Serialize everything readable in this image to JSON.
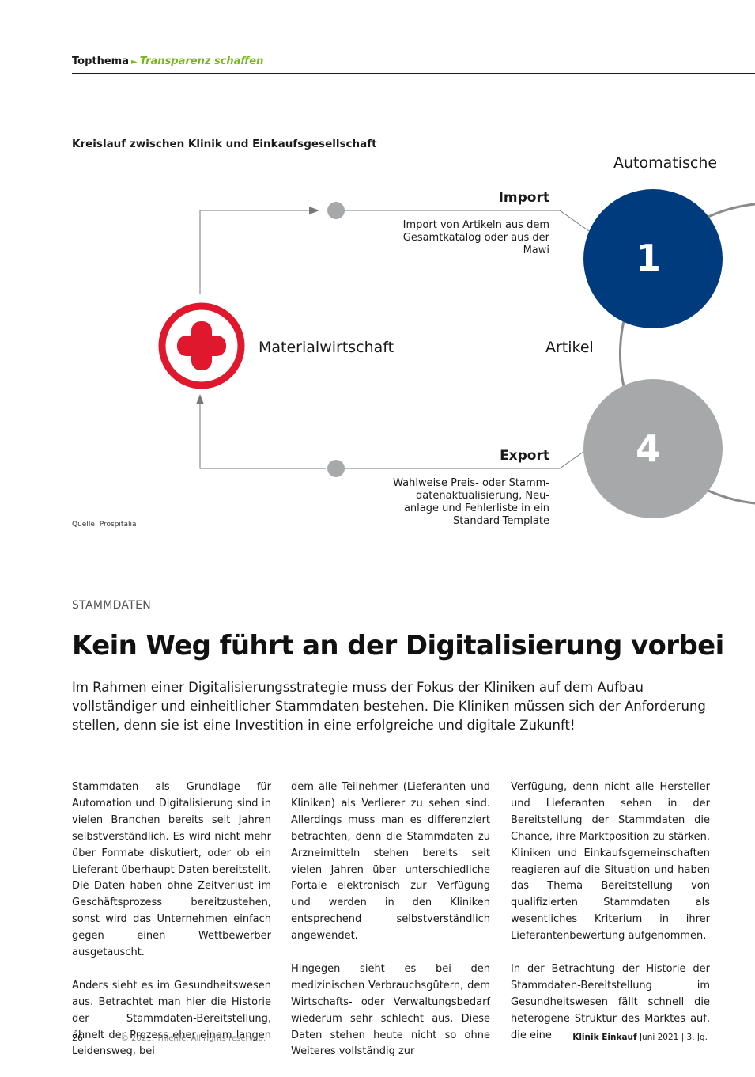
{
  "header": {
    "section": "Topthema",
    "arrow": "►",
    "topic": "Transparenz schaffen"
  },
  "figure": {
    "title": "Kreislauf zwischen Klinik und Einkaufsgesellschaft",
    "top_label": "Automatische",
    "middle_right_label": "Artikel",
    "center_label": "Materialwirtschaft",
    "import": {
      "heading": "Import",
      "lines": [
        "Import von Artikeln aus dem",
        "Gesamtkatalog oder aus der",
        "Mawi"
      ]
    },
    "export": {
      "heading": "Export",
      "lines": [
        "Wahlweise Preis- oder Stamm-",
        "datenaktualisierung, Neu-",
        "anlage und Fehlerliste in ein",
        "Standard-Template"
      ]
    },
    "circle_1": "1",
    "circle_4": "4",
    "source": "Quelle:  Prospitalia",
    "colors": {
      "blue": "#003b7e",
      "grey": "#a7a8aa",
      "red": "#e0182d",
      "green": "#7ab51d"
    }
  },
  "article": {
    "kicker": "STAMMDATEN",
    "headline": "Kein Weg führt an der Digitalisierung vorbei",
    "lead": "Im Rahmen einer Digitalisierungsstrategie muss der Fokus der Kliniken auf dem Aufbau vollständiger und einheitlicher Stammdaten bestehen. Die Kliniken müssen sich der Anforderung stellen, denn sie ist eine Investition in eine erfolgreiche und digitale Zukunft!",
    "col1": [
      "Stammdaten als Grundlage für Automation und Digitalisierung sind in vielen Branchen bereits seit Jahren selbstverständlich. Es wird nicht mehr über Formate diskutiert, oder ob ein Lieferant überhaupt Daten bereitstellt. Die Daten haben ohne Zeitverlust im Geschäftsprozess bereitzustehen, sonst wird das Unternehmen einfach gegen einen Wettbewerber ausgetauscht.",
      "Anders sieht es im Gesundheitswesen aus. Betrachtet man hier die Historie der Stammdaten-Bereitstellung, ähnelt der Prozess eher einem langen Leidensweg, bei"
    ],
    "col2": [
      "dem alle Teilnehmer (Lieferanten und Kliniken) als Verlierer zu sehen sind. Allerdings muss man es differenziert betrachten, denn die Stammdaten zu Arzneimitteln stehen bereits seit vielen Jahren über unterschiedliche Portale elektronisch zur Verfügung und werden in den Kliniken entsprechend selbstverständlich angewendet.",
      "Hingegen sieht es bei den medizinischen Verbrauchsgütern, dem Wirtschafts- oder Verwaltungsbedarf wiederum sehr schlecht aus. Diese Daten stehen heute nicht so ohne Weiteres vollständig zur"
    ],
    "col3": [
      "Verfügung, denn nicht alle Hersteller und Lieferanten sehen in der Bereitstellung der Stammdaten die Chance, ihre Marktposition zu stärken. Kliniken und Einkaufsgemeinschaften reagieren auf die Situation und haben das Thema Bereitstellung von qualifizierten Stammdaten als wesentliches Kriterium in ihrer Lieferantenbewertung aufgenommen.",
      "In der Betrachtung der Historie der Stammdaten-Bereitstellung im Gesundheitswesen fällt schnell die heterogene Struktur des Marktes auf, die eine"
    ]
  },
  "footer": {
    "page": "26",
    "copyright": "© 2021. Thieme. All rights reserved.",
    "journal": "Klinik Einkauf",
    "issue": "Juni 2021  |  3. Jg."
  }
}
